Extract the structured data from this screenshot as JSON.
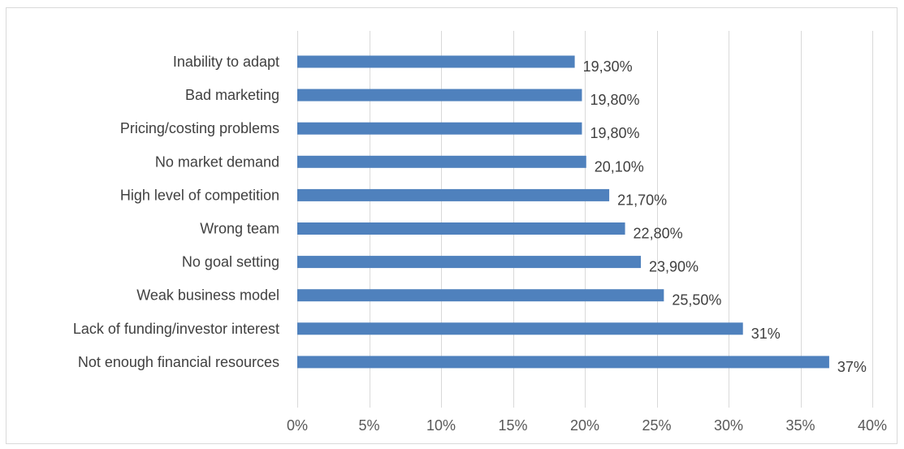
{
  "chart_data": {
    "type": "bar",
    "orientation": "horizontal",
    "title": "",
    "xlabel": "",
    "ylabel": "",
    "categories": [
      "Inability to adapt",
      "Bad marketing",
      "Pricing/costing problems",
      "No market demand",
      "High level of competition",
      "Wrong team",
      "No goal setting",
      "Weak business model",
      "Lack of funding/investor interest",
      "Not enough financial resources"
    ],
    "values": [
      19.3,
      19.8,
      19.8,
      20.1,
      21.7,
      22.8,
      23.9,
      25.5,
      31,
      37
    ],
    "data_labels": [
      "19,30%",
      "19,80%",
      "19,80%",
      "20,10%",
      "21,70%",
      "22,80%",
      "23,90%",
      "25,50%",
      "31%",
      "37%"
    ],
    "xlim": [
      0,
      40
    ],
    "x_ticks": [
      0,
      5,
      10,
      15,
      20,
      25,
      30,
      35,
      40
    ],
    "x_tick_labels": [
      "0%",
      "5%",
      "10%",
      "15%",
      "20%",
      "25%",
      "30%",
      "35%",
      "40%"
    ],
    "grid": true,
    "legend": "none",
    "bar_color": "#4f81bd"
  }
}
